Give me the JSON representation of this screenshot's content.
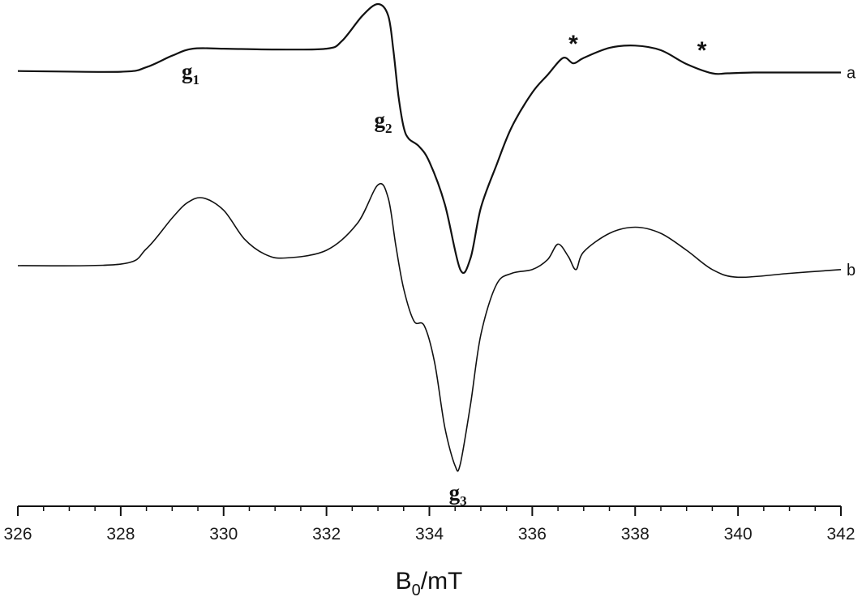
{
  "chart_data": {
    "type": "line",
    "xlabel": "B",
    "xlabel_sub": "0",
    "xlabel_unit": "/mT",
    "xlim": [
      326,
      342
    ],
    "xticks": [
      "326",
      "328",
      "330",
      "332",
      "334",
      "336",
      "338",
      "340",
      "342"
    ],
    "minor_ticks_per_interval": 4,
    "y_axis_visible": false,
    "grid": false,
    "series": [
      {
        "name": "a",
        "label_position": "right-end",
        "x": [
          326,
          328,
          328.5,
          329,
          329.4,
          330,
          331,
          332,
          332.3,
          332.7,
          333.0,
          333.2,
          333.3,
          333.4,
          333.5,
          333.6,
          333.8,
          334.0,
          334.3,
          334.6,
          334.8,
          335.0,
          335.3,
          335.6,
          336.0,
          336.3,
          336.6,
          336.8,
          337.0,
          337.5,
          338.0,
          338.5,
          339.0,
          339.5,
          339.8,
          340.3,
          341,
          342
        ],
        "y": [
          0.13,
          0.12,
          0.18,
          0.33,
          0.42,
          0.42,
          0.41,
          0.42,
          0.52,
          0.85,
          1.0,
          0.85,
          0.4,
          -0.2,
          -0.6,
          -0.75,
          -0.85,
          -1.05,
          -1.6,
          -2.45,
          -2.3,
          -1.65,
          -1.1,
          -0.6,
          -0.15,
          0.08,
          0.3,
          0.23,
          0.3,
          0.43,
          0.46,
          0.4,
          0.22,
          0.1,
          0.1,
          0.11,
          0.11,
          0.11
        ]
      },
      {
        "name": "b",
        "label_position": "right-end",
        "x": [
          326,
          328,
          328.5,
          329,
          329.3,
          329.6,
          330,
          330.4,
          330.8,
          331.2,
          332,
          332.6,
          333.0,
          333.2,
          333.35,
          333.5,
          333.7,
          333.9,
          334.1,
          334.3,
          334.5,
          334.6,
          334.8,
          335.0,
          335.3,
          335.6,
          336.0,
          336.3,
          336.5,
          336.7,
          336.85,
          337.0,
          337.5,
          338.0,
          338.5,
          339.0,
          339.5,
          340.0,
          341,
          342
        ],
        "y": [
          0.0,
          0.02,
          0.22,
          0.62,
          0.82,
          0.88,
          0.72,
          0.35,
          0.15,
          0.1,
          0.2,
          0.55,
          1.05,
          0.88,
          0.25,
          -0.3,
          -0.72,
          -0.78,
          -1.25,
          -2.1,
          -2.6,
          -2.58,
          -1.8,
          -0.9,
          -0.25,
          -0.1,
          -0.05,
          0.08,
          0.28,
          0.12,
          -0.05,
          0.18,
          0.42,
          0.5,
          0.42,
          0.2,
          -0.05,
          -0.15,
          -0.1,
          -0.05
        ]
      }
    ],
    "annotations": [
      {
        "text": "g",
        "sub": "1",
        "x": 329.5,
        "trace": "a"
      },
      {
        "text": "g",
        "sub": "2",
        "x": 333.4,
        "trace": "a"
      },
      {
        "text": "g",
        "sub": "3",
        "x": 334.6,
        "trace": "b"
      },
      {
        "text": "*",
        "x": 336.8,
        "trace": "a"
      },
      {
        "text": "*",
        "x": 339.3,
        "trace": "a"
      }
    ]
  }
}
